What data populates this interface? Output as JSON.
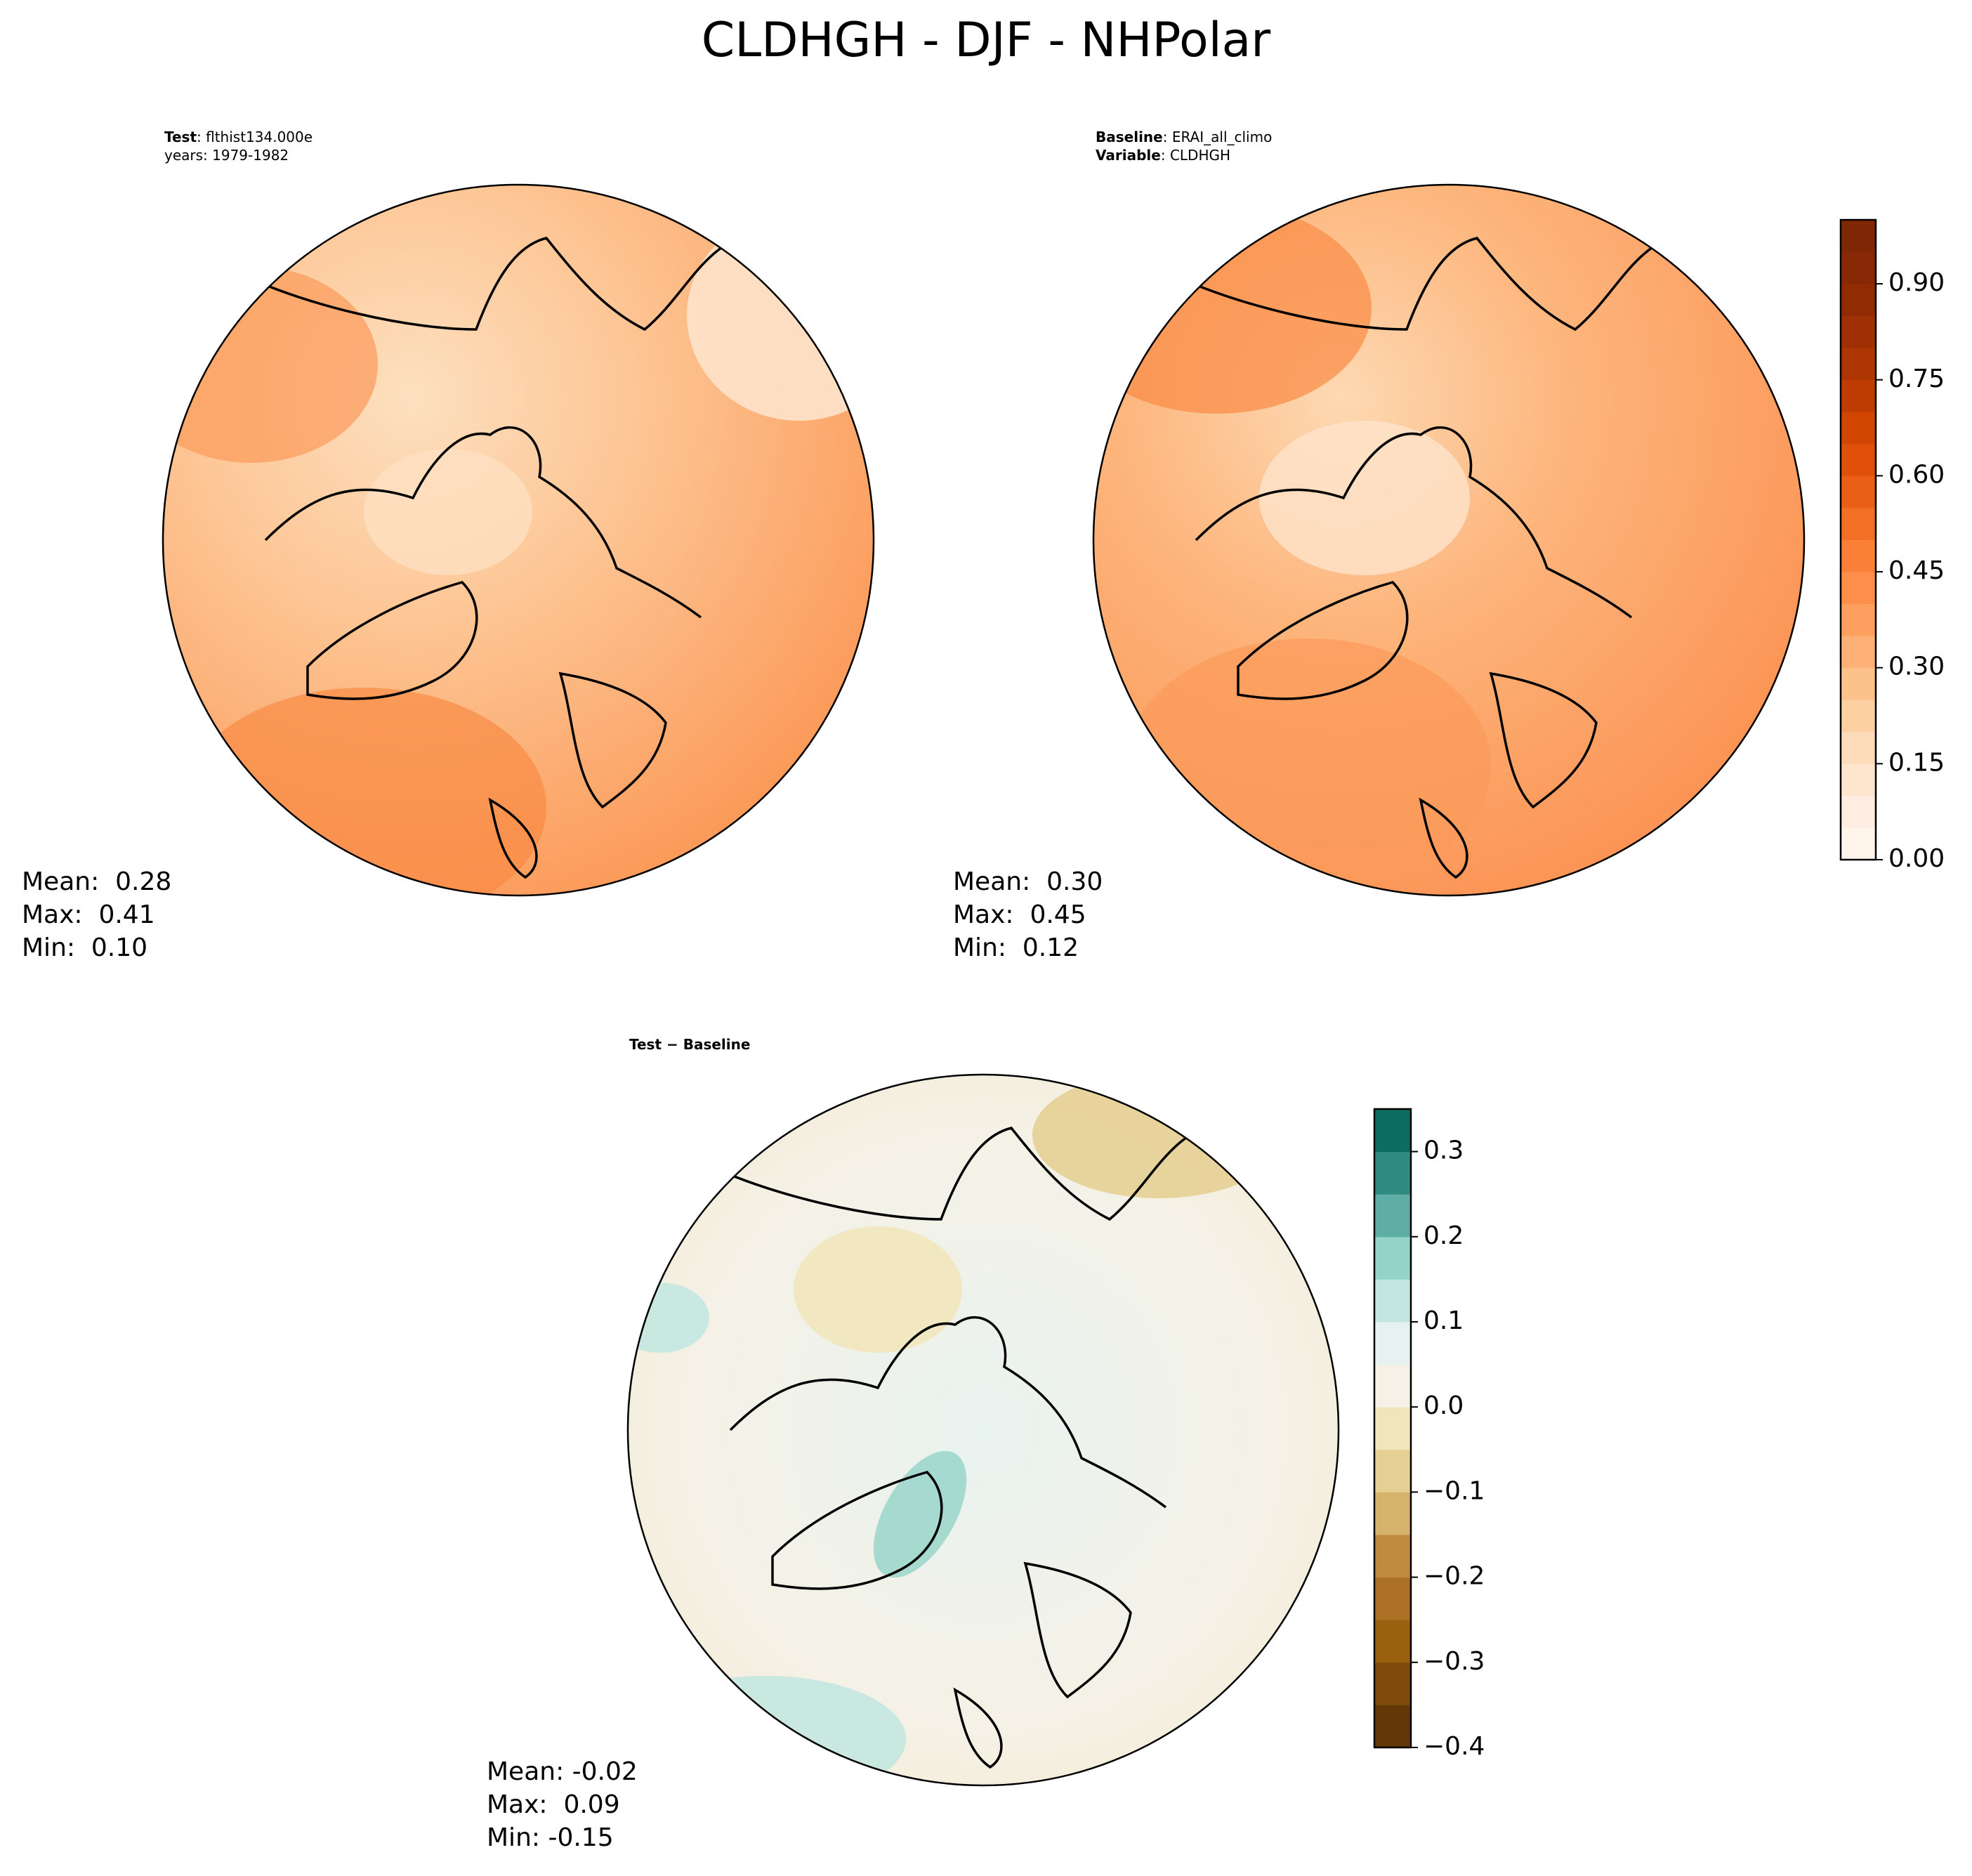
{
  "title": "CLDHGH - DJF - NHPolar",
  "chart_data": [
    {
      "type": "map",
      "header": [
        {
          "key": "Test",
          "text": ": flthist134.000e"
        },
        {
          "text": "years: 1979-1982"
        }
      ],
      "stats": [
        "Mean:  0.28",
        "Max:  0.41",
        "Min:  0.10"
      ]
    },
    {
      "type": "map",
      "header": [
        {
          "key": "Baseline",
          "text": ": ERAI_all_climo"
        },
        {
          "key": "Variable",
          "text": ": CLDHGH"
        }
      ],
      "stats": [
        "Mean:  0.30",
        "Max:  0.45",
        "Min:  0.12"
      ],
      "colorbar": {
        "lim": [
          0,
          1.0
        ],
        "ticks": [
          {
            "value": 0,
            "label": "0.00"
          },
          0.15,
          {
            "value": 0.3,
            "label": "0.30"
          },
          0.45,
          {
            "value": 0.6,
            "label": "0.60"
          },
          0.75,
          {
            "value": 0.9,
            "label": "0.90"
          }
        ],
        "colors": [
          "#fff5eb",
          "#feede0",
          "#fee6ce",
          "#fddcbb",
          "#fdd0a2",
          "#fdc28c",
          "#fdb176",
          "#fda05f",
          "#fd8f4a",
          "#f98036",
          "#f36f25",
          "#eb5e15",
          "#e0500a",
          "#d14402",
          "#bf3c02",
          "#ae3603",
          "#9e3003",
          "#902b04",
          "#862904",
          "#7f2704"
        ]
      }
    },
    {
      "type": "map",
      "header": [
        {
          "key": "Test − Baseline"
        }
      ],
      "stats": [
        "Mean: -0.02",
        "Max:  0.09",
        "Min: -0.15"
      ],
      "colorbar": {
        "lim": [
          -0.4,
          0.35
        ],
        "ticks": [
          {
            "value": -0.4,
            "label": "−0.4"
          },
          {
            "value": -0.3,
            "label": "−0.3"
          },
          {
            "value": -0.2,
            "label": "−0.2"
          },
          {
            "value": -0.1,
            "label": "−0.1"
          },
          {
            "value": 0,
            "label": "0.0"
          },
          0.1,
          0.2,
          0.3
        ],
        "colors": [
          "#633806",
          "#7d4a0a",
          "#98600f",
          "#ac7125",
          "#c08b3c",
          "#d6b36a",
          "#e5cf93",
          "#f1e5bd",
          "#f5f1e6",
          "#e5f2ef",
          "#c3e7e0",
          "#93d3c8",
          "#5eaea5",
          "#2e8b82",
          "#0b6d60"
        ]
      }
    }
  ]
}
